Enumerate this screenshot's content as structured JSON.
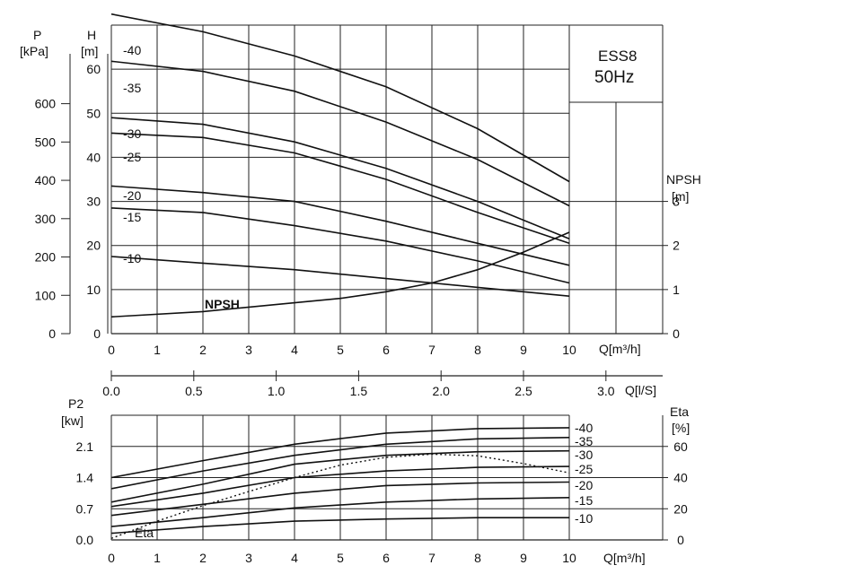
{
  "chart_data": [
    {
      "type": "line",
      "box_label_1": "ESS8",
      "box_label_2": "50Hz",
      "x_label": "Q[m³/h]",
      "x_ticks": [
        0,
        1,
        2,
        3,
        4,
        5,
        6,
        7,
        8,
        9,
        10
      ],
      "xlim": [
        0,
        10
      ],
      "left_axis_P": {
        "label_1": "P",
        "label_2": "[kPa]",
        "ticks": [
          0,
          100,
          200,
          300,
          400,
          500,
          600
        ]
      },
      "left_axis_H": {
        "label_1": "H",
        "label_2": "[m]",
        "ticks": [
          0,
          10,
          20,
          30,
          40,
          50,
          60
        ],
        "ylim": [
          0,
          70
        ]
      },
      "right_axis": {
        "label_1": "NPSH",
        "label_2": "[m]",
        "ticks": [
          0,
          1,
          2,
          3
        ],
        "ylim": [
          0,
          7
        ]
      },
      "series": [
        {
          "name": "-40",
          "x": [
            0,
            2,
            4,
            6,
            8,
            10
          ],
          "y": [
            72.5,
            68.5,
            63,
            56,
            46.5,
            34.5
          ]
        },
        {
          "name": "-35",
          "x": [
            0,
            2,
            4,
            6,
            8,
            10
          ],
          "y": [
            61.8,
            59.5,
            55,
            48,
            39.5,
            29
          ]
        },
        {
          "name": "-30",
          "x": [
            0,
            2,
            4,
            6,
            8,
            10
          ],
          "y": [
            49,
            47.5,
            43.5,
            37.5,
            30,
            21.5
          ]
        },
        {
          "name": "-25",
          "x": [
            0,
            2,
            4,
            6,
            8,
            10
          ],
          "y": [
            45.5,
            44.5,
            41,
            35,
            27.5,
            20.5
          ]
        },
        {
          "name": "-20",
          "x": [
            0,
            2,
            4,
            6,
            8,
            10
          ],
          "y": [
            33.5,
            32,
            30,
            25.5,
            20.5,
            15.5
          ]
        },
        {
          "name": "-15",
          "x": [
            0,
            2,
            4,
            6,
            8,
            10
          ],
          "y": [
            28.5,
            27.5,
            24.5,
            21,
            16.5,
            11.5
          ]
        },
        {
          "name": "-10",
          "x": [
            0,
            2,
            4,
            6,
            8,
            10
          ],
          "y": [
            17.5,
            16,
            14.5,
            12.5,
            10.5,
            8.5
          ]
        },
        {
          "name": "NPSH",
          "axis": "right",
          "x": [
            0,
            2,
            4,
            5,
            6,
            7,
            8,
            9,
            10
          ],
          "y": [
            0.38,
            0.5,
            0.7,
            0.8,
            0.95,
            1.15,
            1.45,
            1.85,
            2.3
          ]
        }
      ],
      "curve_labels": [
        "-40",
        "-35",
        "-30",
        "-25",
        "-20",
        "-15",
        "-10",
        "NPSH"
      ]
    },
    {
      "type": "axis",
      "x_label": "Q[l/S]",
      "x_ticks": [
        "0.0",
        "0.5",
        "1.0",
        "1.5",
        "2.0",
        "2.5",
        "3.0"
      ]
    },
    {
      "type": "line",
      "x_label": "Q[m³/h]",
      "x_ticks": [
        0,
        1,
        2,
        3,
        4,
        5,
        6,
        7,
        8,
        9,
        10
      ],
      "xlim": [
        0,
        10
      ],
      "left_axis": {
        "label_1": "P2",
        "label_2": "[kw]",
        "ticks": [
          "0.0",
          "0.7",
          "1.4",
          "2.1"
        ],
        "ylim": [
          0,
          2.8
        ]
      },
      "right_axis": {
        "label_1": "Eta",
        "label_2": "[%]",
        "ticks": [
          0,
          20,
          40,
          60
        ],
        "ylim": [
          0,
          80
        ]
      },
      "series": [
        {
          "name": "-40",
          "x": [
            0,
            2,
            4,
            6,
            8,
            10
          ],
          "y": [
            1.4,
            1.78,
            2.15,
            2.4,
            2.5,
            2.52
          ]
        },
        {
          "name": "-35",
          "x": [
            0,
            2,
            4,
            6,
            8,
            10
          ],
          "y": [
            1.15,
            1.55,
            1.9,
            2.15,
            2.27,
            2.3
          ]
        },
        {
          "name": "-30",
          "x": [
            0,
            2,
            4,
            6,
            8,
            10
          ],
          "y": [
            0.85,
            1.25,
            1.7,
            1.9,
            1.98,
            2.0
          ]
        },
        {
          "name": "-25",
          "x": [
            0,
            2,
            4,
            6,
            8,
            10
          ],
          "y": [
            0.75,
            1.05,
            1.4,
            1.55,
            1.63,
            1.65
          ]
        },
        {
          "name": "-20",
          "x": [
            0,
            2,
            4,
            6,
            8,
            10
          ],
          "y": [
            0.55,
            0.8,
            1.05,
            1.22,
            1.28,
            1.3
          ]
        },
        {
          "name": "-15",
          "x": [
            0,
            2,
            4,
            6,
            8,
            10
          ],
          "y": [
            0.3,
            0.5,
            0.72,
            0.85,
            0.92,
            0.95
          ]
        },
        {
          "name": "-10",
          "x": [
            0,
            2,
            4,
            6,
            8,
            10
          ],
          "y": [
            0.15,
            0.3,
            0.42,
            0.47,
            0.5,
            0.5
          ]
        },
        {
          "name": "Eta",
          "axis": "right",
          "style": "dotted",
          "x": [
            0,
            1,
            2,
            3,
            4,
            5,
            6,
            7,
            8,
            9,
            10
          ],
          "y": [
            1,
            12,
            22,
            31,
            40,
            48,
            53,
            55,
            54,
            49,
            43
          ]
        }
      ],
      "curve_labels": [
        "-40",
        "-35",
        "-30",
        "-25",
        "-20",
        "-15",
        "-10",
        "Eta"
      ]
    }
  ]
}
